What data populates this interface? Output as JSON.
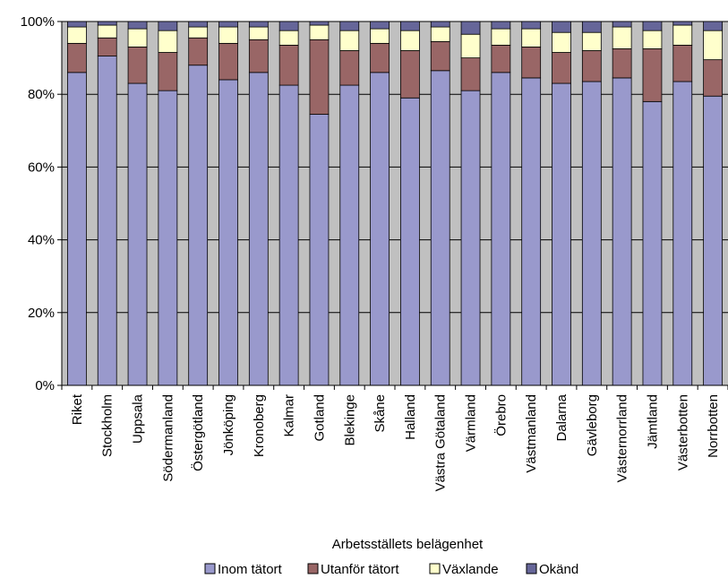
{
  "chart_data": {
    "type": "bar",
    "stacked": true,
    "percent_stacked": true,
    "xlabel": "",
    "ylabel": "",
    "ylim": [
      0,
      100
    ],
    "y_ticks": [
      "0%",
      "20%",
      "40%",
      "60%",
      "80%",
      "100%"
    ],
    "y_tick_values": [
      0,
      20,
      40,
      60,
      80,
      100
    ],
    "grid": true,
    "legend_title": "Arbetsställets belägenhet",
    "legend_position": "bottom",
    "plot_background": "#c0c0c0",
    "categories": [
      "Riket",
      "Stockholm",
      "Uppsala",
      "Södermanland",
      "Östergötland",
      "Jönköping",
      "Kronoberg",
      "Kalmar",
      "Gotland",
      "Blekinge",
      "Skåne",
      "Halland",
      "Västra Götaland",
      "Värmland",
      "Örebro",
      "Västmanland",
      "Dalarna",
      "Gävleborg",
      "Västernorrland",
      "Jämtland",
      "Västerbotten",
      "Norrbotten"
    ],
    "series": [
      {
        "name": "Inom tätort",
        "color": "#9999cc",
        "values": [
          86,
          90.5,
          83,
          81,
          88,
          84,
          86,
          82.5,
          74.5,
          82.5,
          86,
          79,
          86.5,
          81,
          86,
          84.5,
          83,
          83.5,
          84.5,
          78,
          83.5,
          79.5
        ]
      },
      {
        "name": "Utanför tätort",
        "color": "#996666",
        "values": [
          8,
          5,
          10,
          10.5,
          7.5,
          10,
          9,
          11,
          20.5,
          9.5,
          8,
          13,
          8,
          9,
          7.5,
          8.5,
          8.5,
          8.5,
          8,
          14.5,
          10,
          10
        ]
      },
      {
        "name": "Växlande",
        "color": "#ffffcc",
        "values": [
          4.5,
          3.5,
          5,
          6,
          3,
          4.5,
          3.5,
          4,
          4,
          5.5,
          4,
          5.5,
          4,
          6.5,
          4.5,
          5,
          5.5,
          5,
          6,
          5,
          5.5,
          8
        ]
      },
      {
        "name": "Okänd",
        "color": "#666699",
        "values": [
          1.5,
          1,
          2,
          2.5,
          1.5,
          1.5,
          1.5,
          2.5,
          1,
          2.5,
          2,
          2.5,
          1.5,
          3.5,
          2,
          2,
          3,
          3,
          1.5,
          2.5,
          1,
          2.5
        ]
      }
    ]
  }
}
